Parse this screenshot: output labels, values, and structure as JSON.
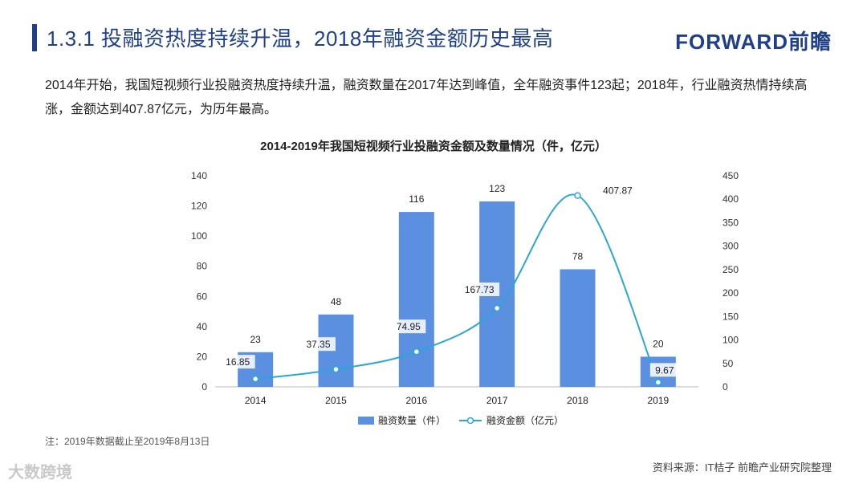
{
  "header": {
    "title": "1.3.1 投融资热度持续升温，2018年融资金额历史最高",
    "brand": "FORWARD前瞻"
  },
  "summary": "2014年开始，我国短视频行业投融资热度持续升温，融资数量在2017年达到峰值，全年融资事件123起；2018年，行业融资热情持续高涨，金额达到407.87亿元，为历年最高。",
  "chart_data": {
    "type": "bar",
    "title": "2014-2019年我国短视频行业投融资金额及数量情况（件，亿元）",
    "categories": [
      "2014",
      "2015",
      "2016",
      "2017",
      "2018",
      "2019"
    ],
    "series": [
      {
        "name": "融资数量（件）",
        "type": "bar",
        "axis": "left",
        "color": "#5b8fe0",
        "values": [
          23,
          48,
          116,
          123,
          78,
          20
        ]
      },
      {
        "name": "融资金额（亿元）",
        "type": "line",
        "axis": "right",
        "color": "#2aa7d6",
        "values": [
          16.85,
          37.35,
          74.95,
          167.73,
          407.87,
          9.67
        ]
      }
    ],
    "left_axis": {
      "min": 0,
      "max": 140,
      "ticks": [
        0,
        20,
        40,
        60,
        80,
        100,
        120,
        140
      ]
    },
    "right_axis": {
      "min": 0,
      "max": 450,
      "ticks": [
        0,
        50,
        100,
        150,
        200,
        250,
        300,
        350,
        400,
        450
      ]
    },
    "legend_position": "bottom"
  },
  "footer": {
    "note": "注：2019年数据截止至2019年8月13日",
    "source": "资料来源：IT桔子 前瞻产业研究院整理",
    "watermark": "大数跨境"
  }
}
